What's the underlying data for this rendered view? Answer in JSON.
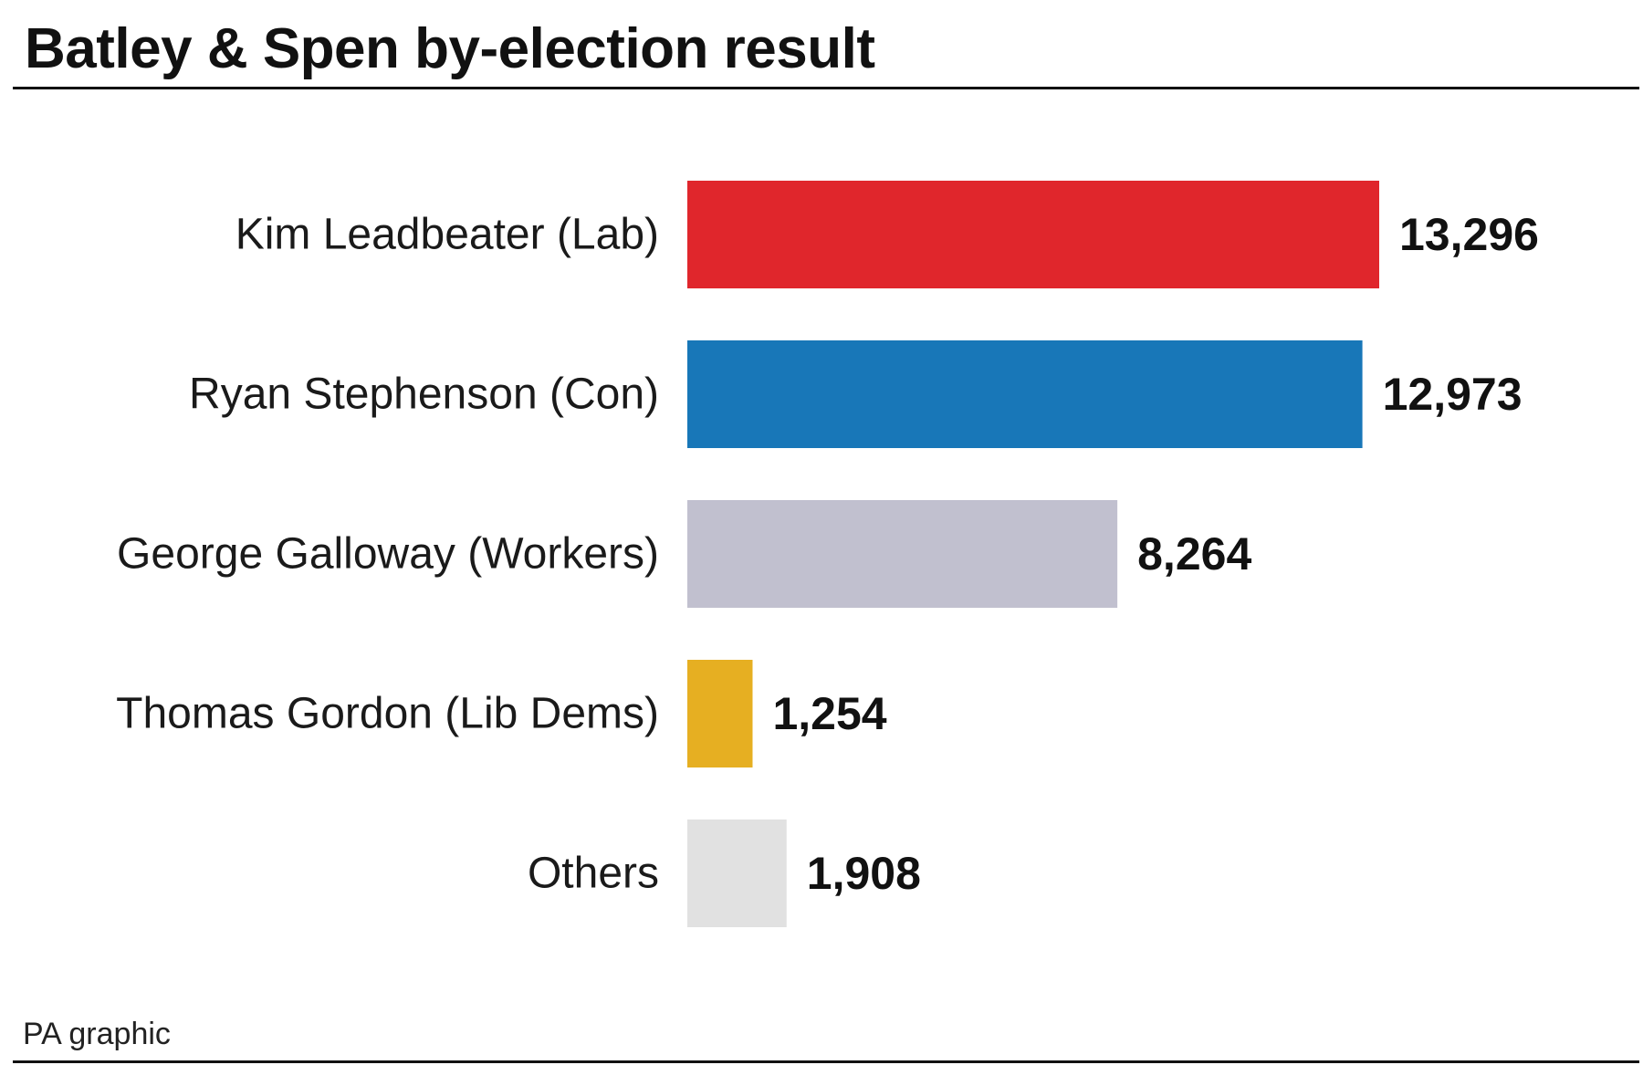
{
  "title": "Batley & Spen by-election result",
  "source": "PA graphic",
  "chart_data": {
    "type": "bar",
    "orientation": "horizontal",
    "title": "Batley & Spen by-election result",
    "categories": [
      "Kim Leadbeater (Lab)",
      "Ryan Stephenson (Con)",
      "George Galloway (Workers)",
      "Thomas Gordon (Lib Dems)",
      "Others"
    ],
    "values": [
      13296,
      12973,
      8264,
      1254,
      1908
    ],
    "value_labels": [
      "13,296",
      "12,973",
      "8,264",
      "1,254",
      "1,908"
    ],
    "colors": [
      "#e0262c",
      "#1877b8",
      "#c1c0cf",
      "#e6af22",
      "#e1e1e1"
    ],
    "xlabel": "",
    "ylabel": "",
    "xlim": [
      0,
      13296
    ],
    "grid": false,
    "legend": "none"
  }
}
